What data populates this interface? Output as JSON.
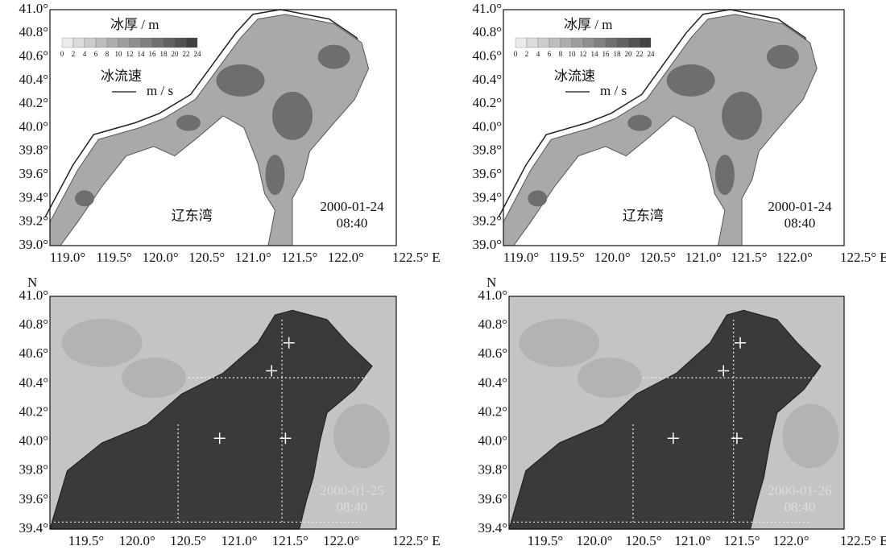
{
  "axes": {
    "top": {
      "yticks": [
        "41.0°",
        "40.8°",
        "40.6°",
        "40.4°",
        "40.2°",
        "40.0°",
        "39.8°",
        "39.6°",
        "39.4°",
        "39.2°",
        "39.0°"
      ],
      "xticks": [
        "119.0°",
        "119.5°",
        "120.0°",
        "120.5°",
        "121.0°",
        "121.5°",
        "122.0°",
        "122.5° E"
      ]
    },
    "bottom": {
      "north": "N",
      "yticks": [
        "41.0°",
        "40.8°",
        "40.6°",
        "40.4°",
        "40.2°",
        "40.0°",
        "39.8°",
        "39.6°",
        "39.4°"
      ],
      "xticks": [
        "119.5°",
        "120.0°",
        "120.5°",
        "121.0°",
        "121.5°",
        "122.0°",
        "122.5° E"
      ]
    }
  },
  "legend": {
    "title": "冰厚 / m",
    "scale": [
      0,
      2,
      4,
      6,
      8,
      10,
      12,
      14,
      16,
      18,
      20,
      22,
      24
    ],
    "velocity": "冰流速",
    "velocity_unit": "m / s"
  },
  "panels": [
    {
      "place": "辽东湾",
      "date": "2000-01-24",
      "time": "08:40"
    },
    {
      "place": "辽东湾",
      "date": "2000-01-24",
      "time": "08:40"
    },
    {
      "date": "2000-01-25",
      "time": "08:40"
    },
    {
      "date": "2000-01-26",
      "time": "08:40"
    }
  ]
}
